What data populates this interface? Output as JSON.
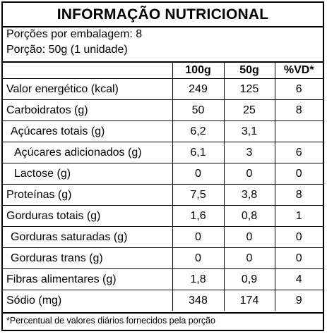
{
  "title": "INFORMAÇÃO NUTRICIONAL",
  "serving": {
    "per_package": "Porções por embalagem: 8",
    "portion": "Porção: 50g (1 unidade)"
  },
  "columns": [
    "",
    "100g",
    "50g",
    "%VD*"
  ],
  "rows": [
    {
      "label": "Valor energético (kcal)",
      "v100": "249",
      "v50": "125",
      "vd": "6",
      "indent": 0
    },
    {
      "label": "Carboidratos (g)",
      "v100": "50",
      "v50": "25",
      "vd": "8",
      "indent": 0
    },
    {
      "label": "Açúcares totais (g)",
      "v100": "6,2",
      "v50": "3,1",
      "vd": "",
      "indent": 1
    },
    {
      "label": "Açúcares adicionados (g)",
      "v100": "6,1",
      "v50": "3",
      "vd": "6",
      "indent": 2
    },
    {
      "label": "Lactose (g)",
      "v100": "0",
      "v50": "0",
      "vd": "0",
      "indent": 2
    },
    {
      "label": "Proteínas (g)",
      "v100": "7,5",
      "v50": "3,8",
      "vd": "8",
      "indent": 0
    },
    {
      "label": "Gorduras totais (g)",
      "v100": "1,6",
      "v50": "0,8",
      "vd": "1",
      "indent": 0
    },
    {
      "label": "Gorduras saturadas (g)",
      "v100": "0",
      "v50": "0",
      "vd": "0",
      "indent": 1
    },
    {
      "label": "Gorduras trans (g)",
      "v100": "0",
      "v50": "0",
      "vd": "0",
      "indent": 1
    },
    {
      "label": "Fibras alimentares (g)",
      "v100": "1,8",
      "v50": "0,9",
      "vd": "4",
      "indent": 0
    },
    {
      "label": "Sódio (mg)",
      "v100": "348",
      "v50": "174",
      "vd": "9",
      "indent": 0
    }
  ],
  "footnote": "*Percentual de valores diários fornecidos pela porção"
}
